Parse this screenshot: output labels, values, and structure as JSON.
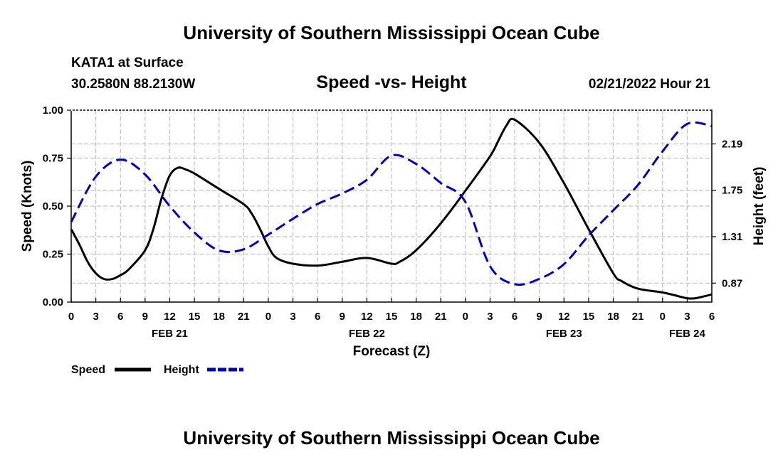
{
  "header": {
    "title": "University of Southern Mississippi Ocean Cube",
    "station": "KATA1 at Surface",
    "coords": "30.2580N  88.2130W",
    "datetime": "02/21/2022 Hour 21",
    "footer_title": "University of Southern Mississippi Ocean Cube"
  },
  "chart_data": {
    "type": "line",
    "title": "Speed -vs- Height",
    "xlabel": "Forecast (Z)",
    "ylabel": "Speed (Knots)",
    "y2label": "Height (feet)",
    "xlim": [
      0,
      78
    ],
    "ylim": [
      0,
      1.0
    ],
    "y2lim": [
      0.69,
      2.51
    ],
    "grid": true,
    "x_tick_labels": [
      "0",
      "3",
      "6",
      "9",
      "12",
      "15",
      "18",
      "21",
      "0",
      "3",
      "6",
      "9",
      "12",
      "15",
      "18",
      "21",
      "0",
      "3",
      "6",
      "9",
      "12",
      "15",
      "18",
      "21",
      "0",
      "3",
      "6"
    ],
    "date_labels": [
      {
        "label": "FEB 21",
        "hours": 12
      },
      {
        "label": "FEB 22",
        "hours": 36
      },
      {
        "label": "FEB 23",
        "hours": 60
      },
      {
        "label": "FEB 24",
        "hours": 75
      }
    ],
    "y_ticks": [
      {
        "value": 0.0,
        "label": "0.00"
      },
      {
        "value": 0.25,
        "label": "0.25"
      },
      {
        "value": 0.5,
        "label": "0.50"
      },
      {
        "value": 0.75,
        "label": "0.75"
      },
      {
        "value": 1.0,
        "label": "1.00"
      }
    ],
    "y2_ticks": [
      {
        "value": 0.87,
        "label": "0.87"
      },
      {
        "value": 1.31,
        "label": "1.31"
      },
      {
        "value": 1.75,
        "label": "1.75"
      },
      {
        "value": 2.19,
        "label": "2.19"
      }
    ],
    "series": [
      {
        "name": "Speed",
        "axis": "left",
        "color": "#000000",
        "dash": "solid",
        "x": [
          0,
          1,
          2,
          3,
          4,
          5,
          6,
          7,
          9,
          10,
          11,
          12,
          13,
          14,
          15,
          18,
          21,
          22,
          23,
          24,
          25,
          27,
          30,
          33,
          36,
          39,
          40,
          42,
          45,
          48,
          51,
          52,
          53,
          54,
          57,
          60,
          63,
          66,
          67,
          69,
          72,
          74,
          75,
          76,
          78
        ],
        "y": [
          0.38,
          0.3,
          0.21,
          0.15,
          0.12,
          0.12,
          0.14,
          0.17,
          0.27,
          0.38,
          0.54,
          0.66,
          0.7,
          0.69,
          0.67,
          0.59,
          0.51,
          0.46,
          0.38,
          0.29,
          0.23,
          0.2,
          0.19,
          0.21,
          0.23,
          0.2,
          0.21,
          0.27,
          0.41,
          0.58,
          0.76,
          0.84,
          0.92,
          0.95,
          0.83,
          0.62,
          0.38,
          0.15,
          0.11,
          0.07,
          0.05,
          0.03,
          0.02,
          0.02,
          0.04
        ]
      },
      {
        "name": "Height",
        "axis": "right",
        "color": "#0000cc",
        "dash": "dashed",
        "x": [
          0,
          3,
          6,
          9,
          12,
          15,
          18,
          21,
          24,
          27,
          30,
          33,
          36,
          39,
          42,
          45,
          48,
          51,
          54,
          57,
          60,
          63,
          66,
          69,
          72,
          75,
          78
        ],
        "y": [
          1.45,
          1.88,
          2.04,
          1.9,
          1.6,
          1.35,
          1.18,
          1.19,
          1.33,
          1.48,
          1.62,
          1.72,
          1.85,
          2.08,
          2.0,
          1.82,
          1.64,
          1.03,
          0.86,
          0.91,
          1.05,
          1.32,
          1.56,
          1.8,
          2.12,
          2.38,
          2.36
        ]
      }
    ],
    "legend": [
      {
        "label": "Speed",
        "color": "#000000"
      },
      {
        "label": "Height",
        "color": "#0000cc"
      }
    ]
  }
}
